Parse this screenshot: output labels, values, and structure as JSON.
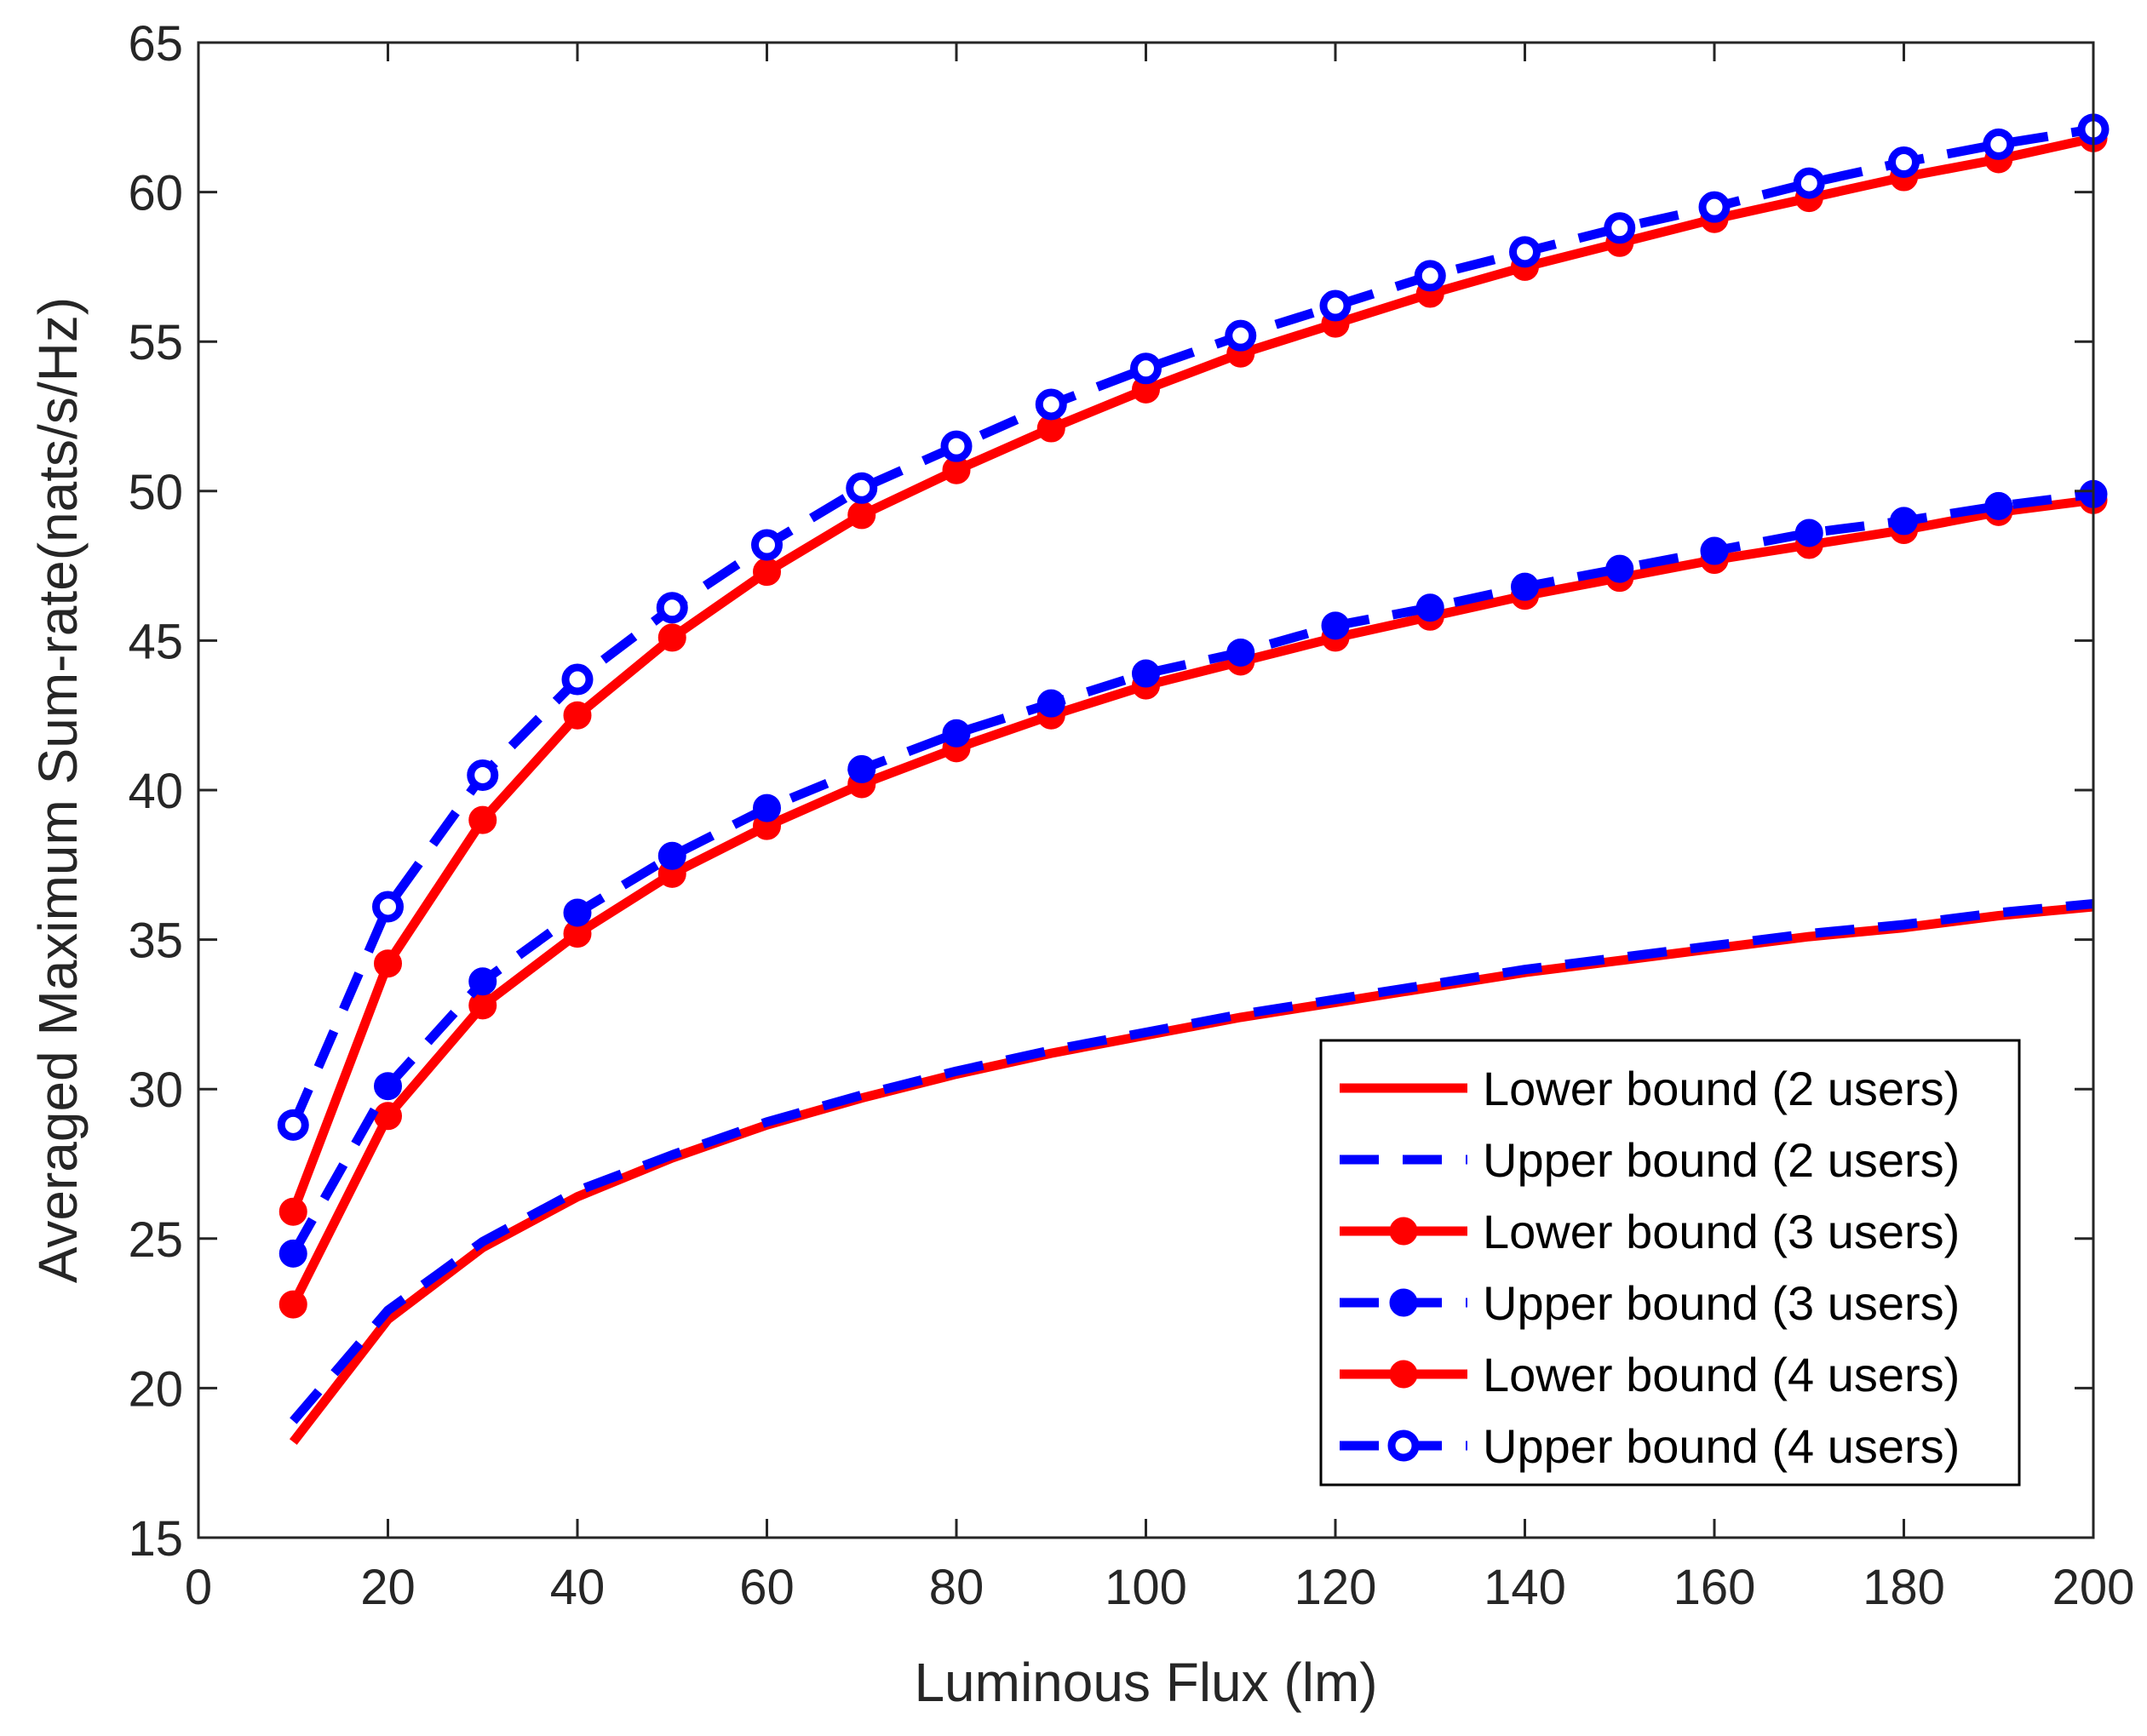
{
  "chart_data": {
    "type": "line",
    "title": "",
    "xlabel": "Luminous Flux (lm)",
    "ylabel": "Averaged Maximum Sum-rate(nats/s/Hz)",
    "xlim": [
      0,
      200
    ],
    "ylim": [
      15,
      65
    ],
    "xticks": [
      0,
      20,
      40,
      60,
      80,
      100,
      120,
      140,
      160,
      180,
      200
    ],
    "yticks": [
      15,
      20,
      25,
      30,
      35,
      40,
      45,
      50,
      55,
      60,
      65
    ],
    "x": [
      10,
      20,
      30,
      40,
      50,
      60,
      70,
      80,
      90,
      100,
      110,
      120,
      130,
      140,
      150,
      160,
      170,
      180,
      190,
      200
    ],
    "legend_position": "bottom-right",
    "series": [
      {
        "name": "Lower bound (2 users)",
        "color": "#ff0000",
        "style": "solid",
        "marker": "none",
        "values": [
          18.2,
          22.3,
          24.7,
          26.4,
          27.7,
          28.8,
          29.7,
          30.5,
          31.2,
          31.8,
          32.4,
          32.9,
          33.4,
          33.9,
          34.3,
          34.7,
          35.1,
          35.4,
          35.8,
          36.1
        ]
      },
      {
        "name": "Upper bound (2 users)",
        "color": "#0000ff",
        "style": "dashed",
        "marker": "none",
        "values": [
          18.9,
          22.6,
          24.9,
          26.6,
          27.8,
          28.9,
          29.8,
          30.6,
          31.3,
          31.9,
          32.5,
          33.0,
          33.5,
          34.0,
          34.4,
          34.8,
          35.2,
          35.5,
          35.9,
          36.2
        ]
      },
      {
        "name": "Lower bound (3 users)",
        "color": "#ff0000",
        "style": "solid",
        "marker": "filled",
        "values": [
          22.8,
          29.1,
          32.8,
          35.2,
          37.2,
          38.8,
          40.2,
          41.4,
          42.5,
          43.5,
          44.3,
          45.1,
          45.8,
          46.5,
          47.1,
          47.7,
          48.2,
          48.7,
          49.3,
          49.7
        ]
      },
      {
        "name": "Upper bound (3 users)",
        "color": "#0000ff",
        "style": "dashed",
        "marker": "filled",
        "values": [
          24.5,
          30.1,
          33.6,
          35.9,
          37.8,
          39.4,
          40.7,
          41.9,
          42.9,
          43.9,
          44.6,
          45.5,
          46.1,
          46.8,
          47.4,
          48.0,
          48.6,
          49.0,
          49.5,
          49.9
        ]
      },
      {
        "name": "Lower bound (4 users)",
        "color": "#ff0000",
        "style": "solid",
        "marker": "filled",
        "values": [
          25.9,
          34.2,
          39.0,
          42.5,
          45.1,
          47.3,
          49.2,
          50.7,
          52.1,
          53.4,
          54.6,
          55.6,
          56.6,
          57.5,
          58.3,
          59.1,
          59.8,
          60.5,
          61.1,
          61.8
        ]
      },
      {
        "name": "Upper bound (4 users)",
        "color": "#0000ff",
        "style": "dashed",
        "marker": "open",
        "values": [
          28.8,
          36.1,
          40.5,
          43.7,
          46.1,
          48.2,
          50.1,
          51.5,
          52.9,
          54.1,
          55.2,
          56.2,
          57.2,
          58.0,
          58.8,
          59.5,
          60.3,
          61.0,
          61.6,
          62.1
        ]
      }
    ]
  }
}
